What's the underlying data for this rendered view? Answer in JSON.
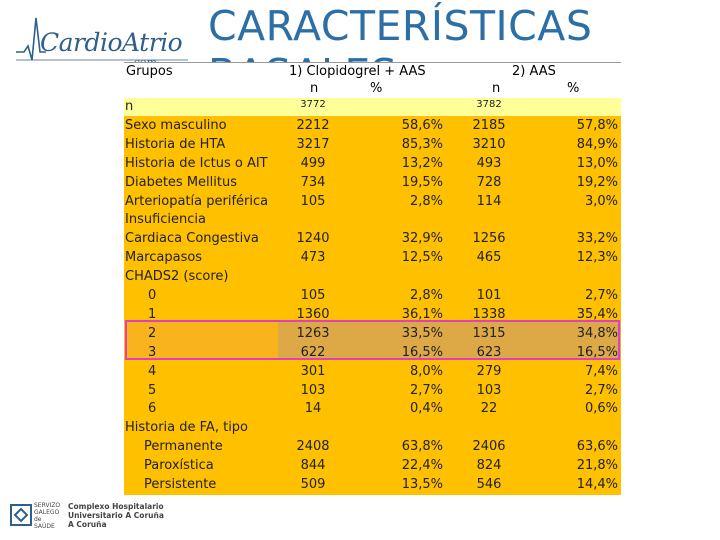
{
  "header": {
    "logo_main": "CardioAtrio",
    "logo_sub": ".com",
    "title": "CARACTERÍSTICAS BASALES"
  },
  "table": {
    "col_groups": "Grupos",
    "col_g1": "1) Clopidogrel + AAS",
    "col_g2": "2) AAS",
    "sub_n1": "n",
    "sub_p1": "%",
    "sub_n2": "n",
    "sub_p2": "%",
    "rows": [
      {
        "label": "n",
        "n1": "3772",
        "p1": "",
        "n2": "3782",
        "p2": ""
      },
      {
        "label": "Sexo masculino",
        "n1": "2212",
        "p1": "58,6%",
        "n2": "2185",
        "p2": "57,8%"
      },
      {
        "label": "Historia de HTA",
        "n1": "3217",
        "p1": "85,3%",
        "n2": "3210",
        "p2": "84,9%"
      },
      {
        "label": "Historia de Ictus o AIT",
        "n1": "499",
        "p1": "13,2%",
        "n2": "493",
        "p2": "13,0%"
      },
      {
        "label": "Diabetes Mellitus",
        "n1": "734",
        "p1": "19,5%",
        "n2": "728",
        "p2": "19,2%"
      },
      {
        "label": "Arteriopatía periférica",
        "n1": "105",
        "p1": "2,8%",
        "n2": "114",
        "p2": "3,0%"
      },
      {
        "label": "Insuficiencia",
        "n1": "",
        "p1": "",
        "n2": "",
        "p2": ""
      },
      {
        "label": "Cardiaca Congestiva",
        "n1": "1240",
        "p1": "32,9%",
        "n2": "1256",
        "p2": "33,2%"
      },
      {
        "label": "Marcapasos",
        "n1": "473",
        "p1": "12,5%",
        "n2": "465",
        "p2": "12,3%"
      },
      {
        "label": "CHADS2 (score)",
        "n1": "",
        "p1": "",
        "n2": "",
        "p2": ""
      },
      {
        "label": "0",
        "n1": "105",
        "p1": "2,8%",
        "n2": "101",
        "p2": "2,7%"
      },
      {
        "label": "1",
        "n1": "1360",
        "p1": "36,1%",
        "n2": "1338",
        "p2": "35,4%"
      },
      {
        "label": "2",
        "n1": "1263",
        "p1": "33,5%",
        "n2": "1315",
        "p2": "34,8%"
      },
      {
        "label": "3",
        "n1": "622",
        "p1": "16,5%",
        "n2": "623",
        "p2": "16,5%"
      },
      {
        "label": "4",
        "n1": "301",
        "p1": "8,0%",
        "n2": "279",
        "p2": "7,4%"
      },
      {
        "label": "5",
        "n1": "103",
        "p1": "2,7%",
        "n2": "103",
        "p2": "2,7%"
      },
      {
        "label": "6",
        "n1": "14",
        "p1": "0,4%",
        "n2": "22",
        "p2": "0,6%"
      },
      {
        "label": "Historia de FA, tipo",
        "n1": "",
        "p1": "",
        "n2": "",
        "p2": ""
      },
      {
        "label": "Permanente",
        "n1": "2408",
        "p1": "63,8%",
        "n2": "2406",
        "p2": "63,6%"
      },
      {
        "label": "Paroxística",
        "n1": "844",
        "p1": "22,4%",
        "n2": "824",
        "p2": "21,8%"
      },
      {
        "label": "Persistente",
        "n1": "509",
        "p1": "13,5%",
        "n2": "546",
        "p2": "14,4%"
      }
    ]
  },
  "footer": {
    "org_small": "SERVIZO GALEGO de SAÚDE",
    "org_line1": "Complexo Hospitalario",
    "org_line2": "Universitario A Coruña",
    "org_line3": "A Coruña"
  },
  "colors": {
    "title": "#2c6fa6",
    "table_fill": "#ffc000",
    "n_row_fill": "#ffff99",
    "highlight_border": "#e040c0"
  }
}
